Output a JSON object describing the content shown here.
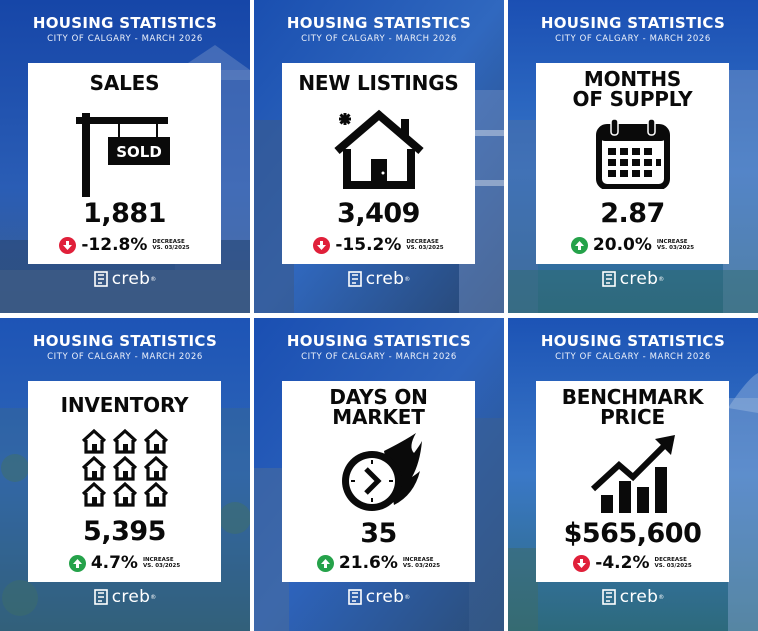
{
  "tiles": [
    {
      "heading": "HOUSING STATISTICS",
      "subheading": "CITY OF CALGARY - MARCH 2026",
      "title": "SALES",
      "value": "1,881",
      "change": "-12.8%",
      "direction": "down",
      "note1": "DECREASE",
      "note2": "VS. 03/2025",
      "icon": "sold-sign-icon",
      "sign_text": "SOLD",
      "logo": "creb",
      "logo_mark": "®"
    },
    {
      "heading": "HOUSING STATISTICS",
      "subheading": "CITY OF CALGARY - MARCH 2026",
      "title": "NEW LISTINGS",
      "value": "3,409",
      "change": "-15.2%",
      "direction": "down",
      "note1": "DECREASE",
      "note2": "VS. 03/2025",
      "icon": "new-house-icon",
      "logo": "creb",
      "logo_mark": "®"
    },
    {
      "heading": "HOUSING STATISTICS",
      "subheading": "CITY OF CALGARY - MARCH 2026",
      "title_line1": "MONTHS",
      "title_line2": "OF SUPPLY",
      "value": "2.87",
      "change": "20.0%",
      "direction": "up",
      "note1": "INCREASE",
      "note2": "VS. 03/2025",
      "icon": "calendar-icon",
      "logo": "creb",
      "logo_mark": "®"
    },
    {
      "heading": "HOUSING STATISTICS",
      "subheading": "CITY OF CALGARY - MARCH 2026",
      "title": "INVENTORY",
      "value": "5,395",
      "change": "4.7%",
      "direction": "up",
      "note1": "INCREASE",
      "note2": "VS. 03/2025",
      "icon": "houses-grid-icon",
      "logo": "creb",
      "logo_mark": "®"
    },
    {
      "heading": "HOUSING STATISTICS",
      "subheading": "CITY OF CALGARY - MARCH 2026",
      "title_line1": "DAYS ON",
      "title_line2": "MARKET",
      "value": "35",
      "change": "21.6%",
      "direction": "up",
      "note1": "INCREASE",
      "note2": "VS. 03/2025",
      "icon": "fast-clock-icon",
      "logo": "creb",
      "logo_mark": "®"
    },
    {
      "heading": "HOUSING STATISTICS",
      "subheading": "CITY OF CALGARY - MARCH 2026",
      "title_line1": "BENCHMARK",
      "title_line2": "PRICE",
      "value": "$565,600",
      "change": "-4.2%",
      "direction": "down",
      "note1": "DECREASE",
      "note2": "VS. 03/2025",
      "icon": "rising-bar-chart-icon",
      "logo": "creb",
      "logo_mark": "®"
    }
  ],
  "colors": {
    "bg_dark": "#0d2b7a",
    "bg_mid": "#1f56b8",
    "bg_light": "#4a86d4",
    "down": "#e0203a",
    "up": "#25a24a"
  }
}
